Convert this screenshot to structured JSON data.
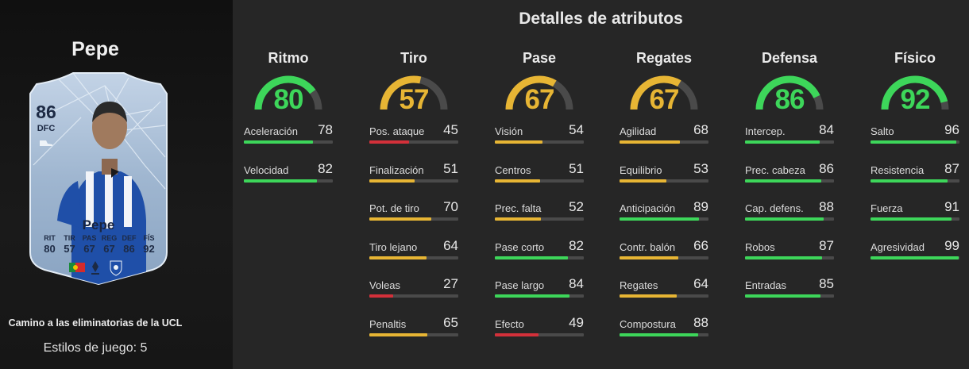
{
  "player": {
    "name": "Pepe",
    "card": {
      "rating": "86",
      "position": "DFC",
      "name": "Pepe",
      "stats": [
        {
          "label": "RIT",
          "value": "80"
        },
        {
          "label": "TIR",
          "value": "57"
        },
        {
          "label": "PAS",
          "value": "67"
        },
        {
          "label": "REG",
          "value": "67"
        },
        {
          "label": "DEF",
          "value": "86"
        },
        {
          "label": "FÍS",
          "value": "92"
        }
      ],
      "colors": {
        "card": "#9fb6d0",
        "text": "#1d2a44",
        "kit_blue": "#1f4fa8"
      }
    },
    "promo": "Camino a las eliminatorias de la UCL",
    "playstyles": "Estilos de juego: 5"
  },
  "main_title": "Detalles de atributos",
  "colors": {
    "green": "#3dd65a",
    "yellow": "#e7b534",
    "red": "#d3303a",
    "track": "#4a4a4a"
  },
  "categories": [
    {
      "title": "Ritmo",
      "value": 80,
      "color": "green",
      "stats": [
        {
          "name": "Aceleración",
          "value": 78,
          "color": "green"
        },
        {
          "name": "Velocidad",
          "value": 82,
          "color": "green"
        }
      ]
    },
    {
      "title": "Tiro",
      "value": 57,
      "color": "yellow",
      "stats": [
        {
          "name": "Pos. ataque",
          "value": 45,
          "color": "red"
        },
        {
          "name": "Finalización",
          "value": 51,
          "color": "yellow"
        },
        {
          "name": "Pot. de tiro",
          "value": 70,
          "color": "yellow"
        },
        {
          "name": "Tiro lejano",
          "value": 64,
          "color": "yellow"
        },
        {
          "name": "Voleas",
          "value": 27,
          "color": "red"
        },
        {
          "name": "Penaltis",
          "value": 65,
          "color": "yellow"
        }
      ]
    },
    {
      "title": "Pase",
      "value": 67,
      "color": "yellow",
      "stats": [
        {
          "name": "Visión",
          "value": 54,
          "color": "yellow"
        },
        {
          "name": "Centros",
          "value": 51,
          "color": "yellow"
        },
        {
          "name": "Prec. falta",
          "value": 52,
          "color": "yellow"
        },
        {
          "name": "Pase corto",
          "value": 82,
          "color": "green"
        },
        {
          "name": "Pase largo",
          "value": 84,
          "color": "green"
        },
        {
          "name": "Efecto",
          "value": 49,
          "color": "red"
        }
      ]
    },
    {
      "title": "Regates",
      "value": 67,
      "color": "yellow",
      "stats": [
        {
          "name": "Agilidad",
          "value": 68,
          "color": "yellow"
        },
        {
          "name": "Equilibrio",
          "value": 53,
          "color": "yellow"
        },
        {
          "name": "Anticipación",
          "value": 89,
          "color": "green"
        },
        {
          "name": "Contr. balón",
          "value": 66,
          "color": "yellow"
        },
        {
          "name": "Regates",
          "value": 64,
          "color": "yellow"
        },
        {
          "name": "Compostura",
          "value": 88,
          "color": "green"
        }
      ]
    },
    {
      "title": "Defensa",
      "value": 86,
      "color": "green",
      "stats": [
        {
          "name": "Intercep.",
          "value": 84,
          "color": "green"
        },
        {
          "name": "Prec. cabeza",
          "value": 86,
          "color": "green"
        },
        {
          "name": "Cap. defens.",
          "value": 88,
          "color": "green"
        },
        {
          "name": "Robos",
          "value": 87,
          "color": "green"
        },
        {
          "name": "Entradas",
          "value": 85,
          "color": "green"
        }
      ]
    },
    {
      "title": "Físico",
      "value": 92,
      "color": "green",
      "stats": [
        {
          "name": "Salto",
          "value": 96,
          "color": "green"
        },
        {
          "name": "Resistencia",
          "value": 87,
          "color": "green"
        },
        {
          "name": "Fuerza",
          "value": 91,
          "color": "green"
        },
        {
          "name": "Agresividad",
          "value": 99,
          "color": "green"
        }
      ]
    }
  ]
}
